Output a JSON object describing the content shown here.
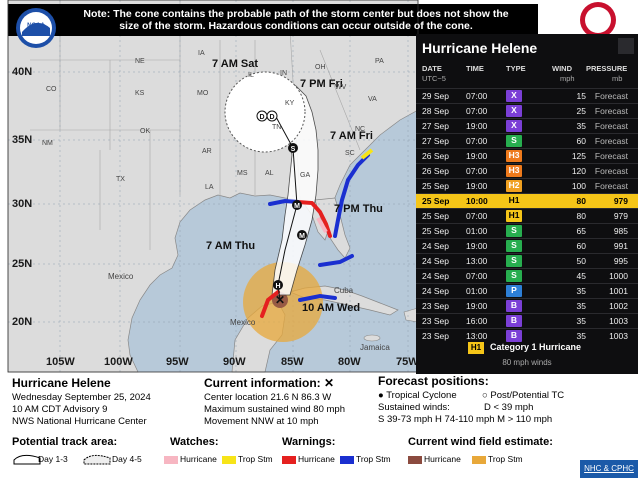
{
  "note": "Note: The cone contains the probable path of the storm center but does not show the size of the storm. Hazardous conditions can occur outside of the cone.",
  "map": {
    "lat_labels": [
      "40N",
      "35N",
      "30N",
      "25N",
      "20N"
    ],
    "lon_labels": [
      "105W",
      "100W",
      "95W",
      "90W",
      "85W",
      "80W",
      "75W"
    ],
    "track_times": [
      "7 AM Sat",
      "7 PM Fri",
      "7 AM Fri",
      "7 PM Thu",
      "7 AM Thu",
      "10 AM Wed"
    ],
    "state_labels": [
      "CO",
      "KS",
      "MO",
      "OK",
      "NM",
      "TX",
      "AR",
      "LA",
      "MS",
      "AL",
      "GA",
      "SC",
      "NC",
      "TN",
      "KY",
      "IN",
      "OH",
      "IL",
      "IA",
      "NE",
      "PA",
      "WV",
      "VA"
    ],
    "country_labels": [
      "Mexico",
      "Mexico",
      "Cuba",
      "Jamaica"
    ]
  },
  "panel": {
    "title": "Hurricane Helene",
    "columns": {
      "date": "DATE",
      "time": "TIME",
      "type": "TYPE",
      "wind": "WIND",
      "pressure": "PRESSURE"
    },
    "units": {
      "tz": "UTC−5",
      "wind": "mph",
      "pressure": "mb"
    },
    "rows": [
      {
        "date": "29 Sep",
        "time": "07:00",
        "type": "X",
        "type_color": "#7b3fd6",
        "wind": "15",
        "pressure": "Forecast"
      },
      {
        "date": "28 Sep",
        "time": "07:00",
        "type": "X",
        "type_color": "#7b3fd6",
        "wind": "25",
        "pressure": "Forecast"
      },
      {
        "date": "27 Sep",
        "time": "19:00",
        "type": "X",
        "type_color": "#7b3fd6",
        "wind": "35",
        "pressure": "Forecast"
      },
      {
        "date": "27 Sep",
        "time": "07:00",
        "type": "S",
        "type_color": "#27ae4f",
        "wind": "60",
        "pressure": "Forecast"
      },
      {
        "date": "26 Sep",
        "time": "19:00",
        "type": "H3",
        "type_color": "#ee7a1c",
        "wind": "125",
        "pressure": "Forecast"
      },
      {
        "date": "26 Sep",
        "time": "07:00",
        "type": "H3",
        "type_color": "#ee7a1c",
        "wind": "120",
        "pressure": "Forecast"
      },
      {
        "date": "25 Sep",
        "time": "19:00",
        "type": "H2",
        "type_color": "#f0a020",
        "wind": "100",
        "pressure": "Forecast"
      },
      {
        "date": "25 Sep",
        "time": "10:00",
        "type": "H1",
        "type_color": "#f5c518",
        "wind": "80",
        "pressure": "979",
        "current": true
      },
      {
        "date": "25 Sep",
        "time": "07:00",
        "type": "H1",
        "type_color": "#f5c518",
        "wind": "80",
        "pressure": "979"
      },
      {
        "date": "25 Sep",
        "time": "01:00",
        "type": "S",
        "type_color": "#27ae4f",
        "wind": "65",
        "pressure": "985"
      },
      {
        "date": "24 Sep",
        "time": "19:00",
        "type": "S",
        "type_color": "#27ae4f",
        "wind": "60",
        "pressure": "991"
      },
      {
        "date": "24 Sep",
        "time": "13:00",
        "type": "S",
        "type_color": "#27ae4f",
        "wind": "50",
        "pressure": "995"
      },
      {
        "date": "24 Sep",
        "time": "07:00",
        "type": "S",
        "type_color": "#27ae4f",
        "wind": "45",
        "pressure": "1000"
      },
      {
        "date": "24 Sep",
        "time": "01:00",
        "type": "P",
        "type_color": "#2d7fd6",
        "wind": "35",
        "pressure": "1001"
      },
      {
        "date": "23 Sep",
        "time": "19:00",
        "type": "B",
        "type_color": "#7b3fd6",
        "wind": "35",
        "pressure": "1002"
      },
      {
        "date": "23 Sep",
        "time": "16:00",
        "type": "B",
        "type_color": "#7b3fd6",
        "wind": "35",
        "pressure": "1003"
      },
      {
        "date": "23 Sep",
        "time": "13:00",
        "type": "B",
        "type_color": "#7b3fd6",
        "wind": "35",
        "pressure": "1003"
      }
    ],
    "legend_code": "H1",
    "legend_text": "Category 1 Hurricane",
    "legend_sub": "80 mph winds"
  },
  "info": {
    "storm_name": "Hurricane Helene",
    "date_line": "Wednesday September 25, 2024",
    "advisory_line": "10 AM CDT Advisory 9",
    "center_line": "NWS National Hurricane Center",
    "current_title": "Current information: ✕",
    "location": "Center location 21.6 N 86.3 W",
    "max_wind": "Maximum sustained wind 80 mph",
    "movement": "Movement NNW at 10 mph",
    "forecast_title": "Forecast positions:",
    "fc_legend_1": "Tropical Cyclone",
    "fc_legend_2": "Post/Potential TC",
    "fc_sustained": "Sustained winds:",
    "fc_d": "D < 39 mph",
    "fc_scale": "S 39-73 mph  H 74-110 mph  M > 110 mph",
    "track_area_title": "Potential track area:",
    "track_day13": "Day 1-3",
    "track_day45": "Day 4-5",
    "watches_title": "Watches:",
    "watch_hurricane": "Hurricane",
    "watch_trop": "Trop Stm",
    "warnings_title": "Warnings:",
    "warn_hurricane": "Hurricane",
    "warn_trop": "Trop Stm",
    "windfield_title": "Current wind field estimate:",
    "wf_hurricane": "Hurricane",
    "wf_trop": "Trop Stm",
    "credit": "NHC & CPHC"
  },
  "colors": {
    "ocean": "#b7c9d9",
    "land": "#dcdcdc",
    "cone": "#ffffff",
    "warn_hurricane": "#e5201f",
    "warn_trop": "#1a2fd0",
    "watch_hurricane": "#f7b6c2",
    "watch_trop": "#f7e418",
    "wind_hurricane": "#8b4b3f",
    "wind_trop": "#e8a83a",
    "panel_current": "#f5c518"
  }
}
